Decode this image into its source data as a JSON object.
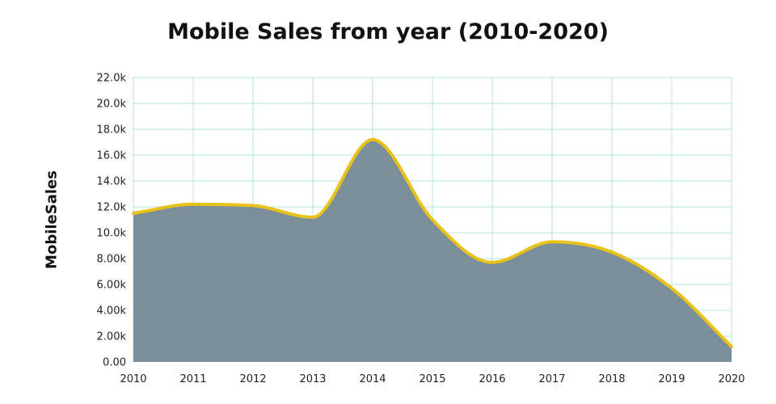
{
  "chart_data": {
    "type": "area",
    "title": "Mobile Sales from year (2010-2020)",
    "xlabel": "",
    "ylabel": "MobileSales",
    "x": [
      2010,
      2011,
      2012,
      2013,
      2014,
      2015,
      2016,
      2017,
      2018,
      2019,
      2020
    ],
    "x_tick_labels": [
      "2010",
      "2011",
      "2012",
      "2013",
      "2014",
      "2015",
      "2016",
      "2017",
      "2018",
      "2019",
      "2020"
    ],
    "series": [
      {
        "values": [
          11500,
          12200,
          12100,
          11200,
          17200,
          11000,
          7700,
          9300,
          8500,
          5700,
          1200
        ]
      }
    ],
    "ylim": [
      0,
      22000
    ],
    "y_ticks": [
      0,
      2000,
      4000,
      6000,
      8000,
      10000,
      12000,
      14000,
      16000,
      18000,
      20000,
      22000
    ],
    "y_tick_labels": [
      "0.00",
      "2.00k",
      "4.00k",
      "6.00k",
      "8.00k",
      "10.0k",
      "12.0k",
      "14.0k",
      "16.0k",
      "18.0k",
      "20.0k",
      "22.0k"
    ],
    "grid": true,
    "colors": {
      "fill": "#7a8f99",
      "line": "#e8c21a",
      "grid": "#b6e3da"
    }
  }
}
